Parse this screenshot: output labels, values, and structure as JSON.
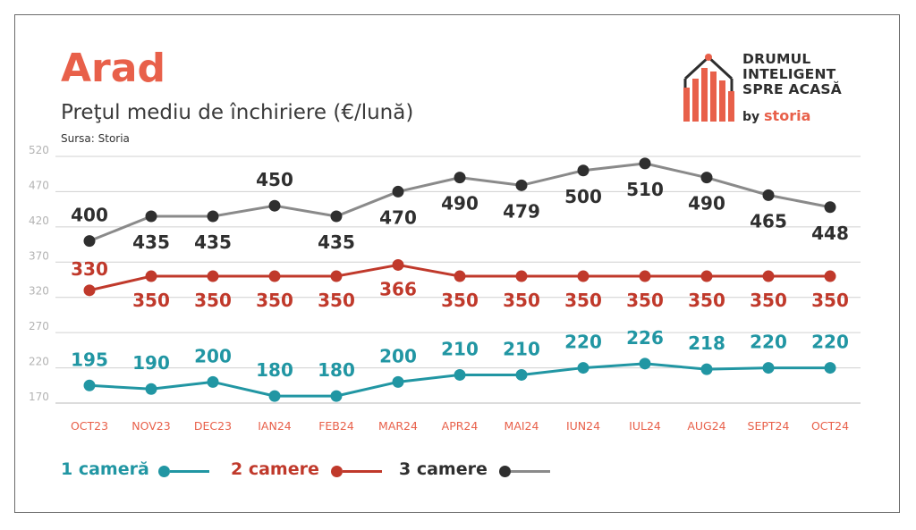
{
  "header": {
    "city": "Arad",
    "subtitle": "Preţul mediu de închiriere (€/lună)",
    "source": "Sursa: Storia"
  },
  "brand": {
    "line1": "DRUMUL",
    "line2": "INTELIGENT",
    "line3": "SPRE ACASĂ",
    "by": "by",
    "storia": "storia",
    "icon": "house-bars-logo-icon"
  },
  "colors": {
    "one_room": "#2196a3",
    "two_rooms": "#c0392b",
    "three_rooms": "#8a8a8a",
    "three_rooms_marker": "#2f2f2f",
    "accent": "#e8604a",
    "grid": "#d0d0d0",
    "tick": "#b3b3b3"
  },
  "chart_data": {
    "type": "line",
    "categories": [
      "OCT23",
      "NOV23",
      "DEC23",
      "IAN24",
      "FEB24",
      "MAR24",
      "APR24",
      "MAI24",
      "IUN24",
      "IUL24",
      "AUG24",
      "SEPT24",
      "OCT24"
    ],
    "y_ticks": [
      170,
      220,
      270,
      320,
      370,
      420,
      470,
      520
    ],
    "ylim": [
      170,
      520
    ],
    "grid": true,
    "legend_placement": "bottom-left",
    "series": [
      {
        "name": "1 cameră",
        "values": [
          195,
          190,
          200,
          180,
          180,
          200,
          210,
          210,
          220,
          226,
          218,
          220,
          220
        ]
      },
      {
        "name": "2 camere",
        "values": [
          330,
          350,
          350,
          350,
          350,
          366,
          350,
          350,
          350,
          350,
          350,
          350,
          350
        ]
      },
      {
        "name": "3 camere",
        "values": [
          400,
          435,
          435,
          450,
          435,
          470,
          490,
          479,
          500,
          510,
          490,
          465,
          448
        ]
      }
    ]
  }
}
